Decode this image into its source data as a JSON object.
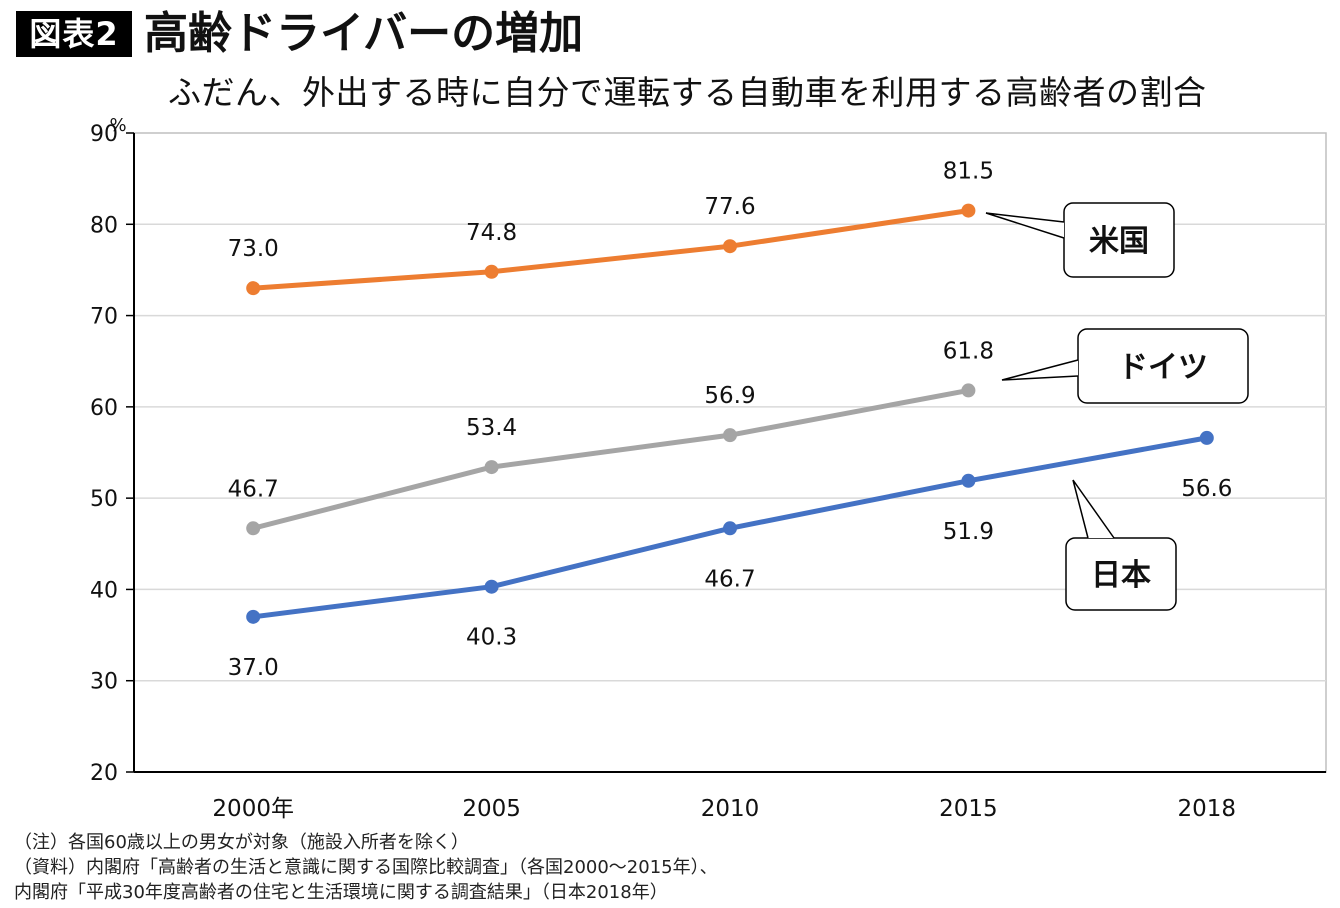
{
  "header": {
    "badge": "図表2",
    "title": "高齢ドライバーの増加",
    "subtitle": "ふだん、外出する時に自分で運転する自動車を利用する高齢者の割合"
  },
  "chart_data": {
    "type": "line",
    "unit": "%",
    "categories": [
      "2000年",
      "2005",
      "2010",
      "2015",
      "2018"
    ],
    "ylim": [
      20,
      90
    ],
    "yticks": [
      20,
      30,
      40,
      50,
      60,
      70,
      80,
      90
    ],
    "grid": true,
    "series": [
      {
        "name": "米国",
        "color": "#ED7D31",
        "values": [
          73.0,
          74.8,
          77.6,
          81.5,
          null
        ],
        "labels": [
          "73.0",
          "74.8",
          "77.6",
          "81.5",
          ""
        ]
      },
      {
        "name": "ドイツ",
        "color": "#A5A5A5",
        "values": [
          46.7,
          53.4,
          56.9,
          61.8,
          null
        ],
        "labels": [
          "46.7",
          "53.4",
          "56.9",
          "61.8",
          ""
        ]
      },
      {
        "name": "日本",
        "color": "#4472C4",
        "values": [
          37.0,
          40.3,
          46.7,
          51.9,
          56.6
        ],
        "labels": [
          "37.0",
          "40.3",
          "46.7",
          "51.9",
          "56.6"
        ]
      }
    ]
  },
  "notes": [
    "（注）各国60歳以上の男女が対象（施設入所者を除く）",
    "（資料）内閣府「高齢者の生活と意識に関する国際比較調査」（各国2000～2015年）、",
    "内閣府「平成30年度高齢者の住宅と生活環境に関する調査結果」（日本2018年）"
  ]
}
